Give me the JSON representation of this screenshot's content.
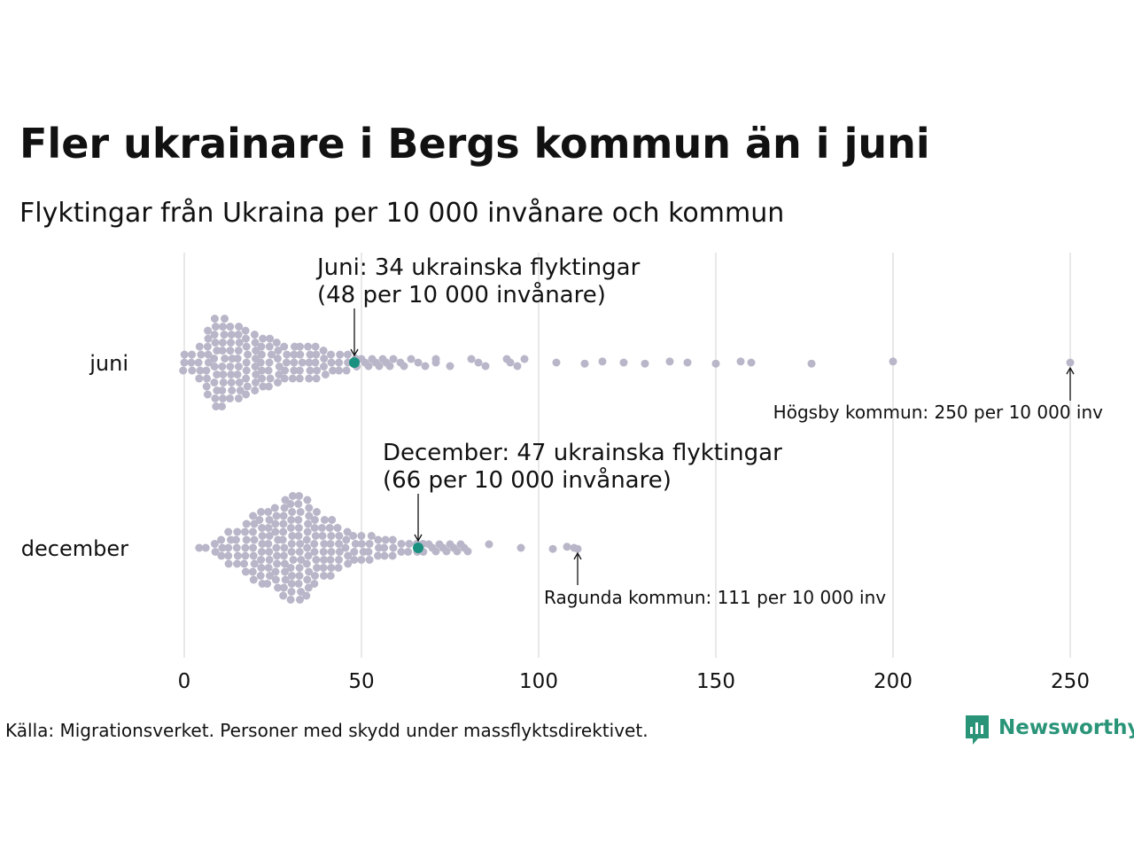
{
  "title": "Fler ukrainare i Bergs kommun än i juni",
  "subtitle": "Flyktingar från Ukraina per 10 000 invånare och kommun",
  "source": "Källa: Migrationsverket. Personer med skydd under massflyktsdirektivet.",
  "brand": {
    "name": "Newsworthy",
    "logo_icon": "bar-chart-speech-bubble-icon"
  },
  "colors": {
    "dot": "#b8b6c8",
    "highlight": "#1a9080",
    "brand": "#2a9478"
  },
  "chart_data": {
    "type": "scatter",
    "subtype": "beeswarm",
    "xlim": [
      0,
      250
    ],
    "xticks": [
      "0",
      "50",
      "100",
      "150",
      "200",
      "250"
    ],
    "grid": "vertical",
    "categories": [
      "juni",
      "december"
    ],
    "series": [
      {
        "name": "juni",
        "highlight": {
          "value": 48,
          "label_line1": "Juni: 34 ukrainska flyktingar",
          "label_line2": "(48 per 10 000 invånare)"
        },
        "max_note": {
          "value": 250,
          "label": "Högsby kommun: 250 per 10 000 inv"
        },
        "tail_values": [
          50,
          51,
          52,
          53,
          54,
          55,
          56,
          57,
          58,
          59,
          61,
          62,
          64,
          66,
          68,
          71,
          71,
          75,
          81,
          83,
          85,
          91,
          92,
          94,
          96,
          105,
          113,
          118,
          124,
          130,
          137,
          142,
          150,
          157,
          160,
          177,
          200,
          250
        ]
      },
      {
        "name": "december",
        "highlight": {
          "value": 66,
          "label_line1": "December: 47 ukrainska flyktingar",
          "label_line2": "(66 per 10 000 invånare)"
        },
        "max_note": {
          "value": 111,
          "label": "Ragunda kommun: 111 per 10 000 inv"
        },
        "tail_values": [
          69,
          70,
          71,
          72,
          73,
          74,
          75,
          76,
          77,
          78,
          79,
          80,
          86,
          95,
          104,
          108,
          110,
          111
        ]
      }
    ]
  }
}
